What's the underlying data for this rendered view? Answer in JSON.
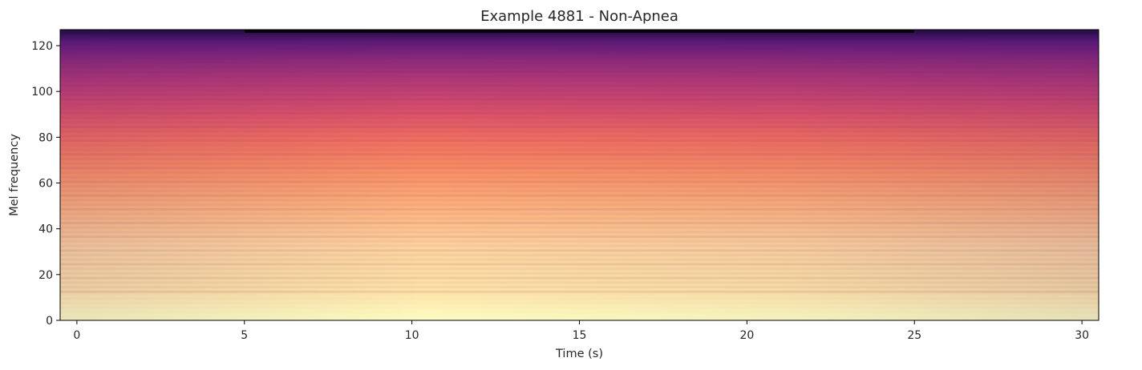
{
  "chart_data": {
    "type": "heatmap",
    "title": "Example 4881 - Non-Apnea",
    "xlabel": "Time (s)",
    "ylabel": "Mel frequency",
    "xlim": [
      -0.5,
      30.5
    ],
    "ylim": [
      0,
      127
    ],
    "x_ticks": [
      0,
      5,
      10,
      15,
      20,
      25,
      30
    ],
    "y_ticks": [
      0,
      20,
      40,
      60,
      80,
      100,
      120
    ],
    "x_tick_labels": [
      "0",
      "5",
      "10",
      "15",
      "20",
      "25",
      "30"
    ],
    "y_tick_labels": [
      "0",
      "20",
      "40",
      "60",
      "80",
      "100",
      "120"
    ],
    "colormap": "magma",
    "grid": false,
    "legend": "none",
    "frame_color": "#000000",
    "intensity_profile": {
      "mel_bins": [
        0,
        10,
        20,
        30,
        40,
        50,
        60,
        70,
        80,
        90,
        100,
        110,
        118,
        123,
        127
      ],
      "relative_level": [
        0.97,
        0.95,
        0.93,
        0.91,
        0.88,
        0.84,
        0.79,
        0.73,
        0.66,
        0.6,
        0.55,
        0.5,
        0.44,
        0.32,
        0.1
      ]
    }
  }
}
